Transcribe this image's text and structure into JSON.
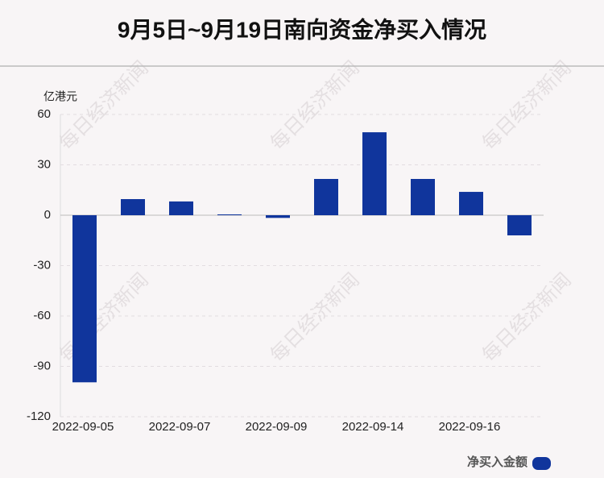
{
  "chart_data": {
    "type": "bar",
    "title": "9月5日~9月19日南向资金净买入情况",
    "y_axis_label": "亿港元",
    "watermark": "每日经济新闻",
    "categories": [
      "2022-09-05",
      null,
      "2022-09-07",
      null,
      "2022-09-09",
      null,
      "2022-09-14",
      null,
      "2022-09-16",
      null
    ],
    "series": [
      {
        "name": "净买入金额",
        "color": "#10359c",
        "values": [
          -99.5,
          9.6,
          8.2,
          0.5,
          -1.6,
          21.6,
          49.4,
          21.6,
          13.9,
          -12
        ]
      }
    ],
    "ylim": [
      -120,
      60
    ],
    "yticks": [
      -120,
      -90,
      -60,
      -30,
      0,
      30,
      60
    ],
    "grid": true,
    "legend": "bottom-right"
  }
}
